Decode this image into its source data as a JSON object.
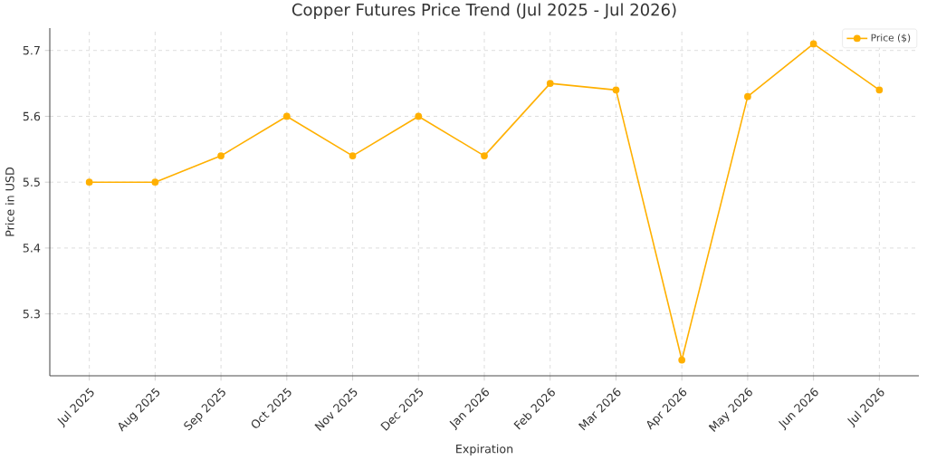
{
  "chart_data": {
    "type": "line",
    "title": "Copper Futures Price Trend (Jul 2025 - Jul 2026)",
    "xlabel": "Expiration",
    "ylabel": "Price in USD",
    "categories": [
      "Jul 2025",
      "Aug 2025",
      "Sep 2025",
      "Oct 2025",
      "Nov 2025",
      "Dec 2025",
      "Jan 2026",
      "Feb 2026",
      "Mar 2026",
      "Apr 2026",
      "May 2026",
      "Jun 2026",
      "Jul 2026"
    ],
    "series": [
      {
        "name": "Price ($)",
        "color": "#ffb000",
        "values": [
          5.5,
          5.5,
          5.54,
          5.6,
          5.54,
          5.6,
          5.54,
          5.65,
          5.64,
          5.23,
          5.63,
          5.71,
          5.64
        ]
      }
    ],
    "ylim": [
      5.206,
      5.734
    ],
    "yticks": [
      5.3,
      5.4,
      5.5,
      5.6,
      5.7
    ],
    "grid": true,
    "legend": "top right",
    "marker": "circle",
    "line_style": "solid"
  }
}
